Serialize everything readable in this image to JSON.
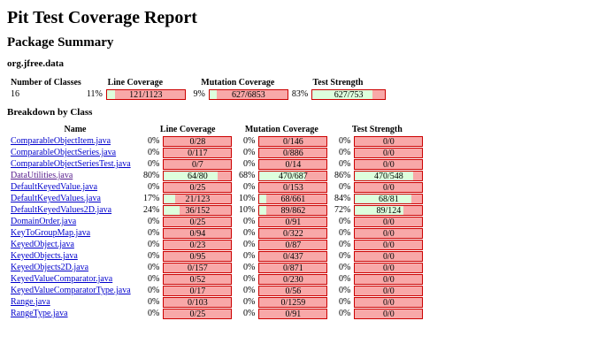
{
  "title": "Pit Test Coverage Report",
  "package_summary_heading": "Package Summary",
  "package_name": "org.jfree.data",
  "summary": {
    "headers": {
      "classes": "Number of Classes",
      "line": "Line Coverage",
      "mutation": "Mutation Coverage",
      "strength": "Test Strength"
    },
    "classes_count": "16",
    "line": {
      "pct": "11%",
      "label": "121/1123",
      "fraction": 0.1077
    },
    "mutation": {
      "pct": "9%",
      "label": "627/6853",
      "fraction": 0.0915
    },
    "strength": {
      "pct": "83%",
      "label": "627/753",
      "fraction": 0.8327
    }
  },
  "breakdown_heading": "Breakdown by Class",
  "breakdown_headers": {
    "name": "Name",
    "line": "Line Coverage",
    "mutation": "Mutation Coverage",
    "strength": "Test Strength"
  },
  "colors": {
    "covered": "#ddffdd",
    "uncovered": "#f8a8a8",
    "link": "#0000cc",
    "visited_link": "#551a8b"
  },
  "rows": [
    {
      "name": "ComparableObjectItem.java",
      "visited": false,
      "line_pct": "0%",
      "line": "0/28",
      "line_frac": 0,
      "mut_pct": "0%",
      "mut": "0/146",
      "mut_frac": 0,
      "str_pct": "0%",
      "str": "0/0",
      "str_frac": 0
    },
    {
      "name": "ComparableObjectSeries.java",
      "visited": false,
      "line_pct": "0%",
      "line": "0/117",
      "line_frac": 0,
      "mut_pct": "0%",
      "mut": "0/886",
      "mut_frac": 0,
      "str_pct": "0%",
      "str": "0/0",
      "str_frac": 0
    },
    {
      "name": "ComparableObjectSeriesTest.java",
      "visited": false,
      "line_pct": "0%",
      "line": "0/7",
      "line_frac": 0,
      "mut_pct": "0%",
      "mut": "0/14",
      "mut_frac": 0,
      "str_pct": "0%",
      "str": "0/0",
      "str_frac": 0
    },
    {
      "name": "DataUtilities.java",
      "visited": true,
      "line_pct": "80%",
      "line": "64/80",
      "line_frac": 0.8,
      "mut_pct": "68%",
      "mut": "470/687",
      "mut_frac": 0.684,
      "str_pct": "86%",
      "str": "470/548",
      "str_frac": 0.858
    },
    {
      "name": "DefaultKeyedValue.java",
      "visited": false,
      "line_pct": "0%",
      "line": "0/25",
      "line_frac": 0,
      "mut_pct": "0%",
      "mut": "0/153",
      "mut_frac": 0,
      "str_pct": "0%",
      "str": "0/0",
      "str_frac": 0
    },
    {
      "name": "DefaultKeyedValues.java",
      "visited": false,
      "line_pct": "17%",
      "line": "21/123",
      "line_frac": 0.171,
      "mut_pct": "10%",
      "mut": "68/661",
      "mut_frac": 0.103,
      "str_pct": "84%",
      "str": "68/81",
      "str_frac": 0.84
    },
    {
      "name": "DefaultKeyedValues2D.java",
      "visited": false,
      "line_pct": "24%",
      "line": "36/152",
      "line_frac": 0.237,
      "mut_pct": "10%",
      "mut": "89/862",
      "mut_frac": 0.103,
      "str_pct": "72%",
      "str": "89/124",
      "str_frac": 0.718
    },
    {
      "name": "DomainOrder.java",
      "visited": false,
      "line_pct": "0%",
      "line": "0/25",
      "line_frac": 0,
      "mut_pct": "0%",
      "mut": "0/91",
      "mut_frac": 0,
      "str_pct": "0%",
      "str": "0/0",
      "str_frac": 0
    },
    {
      "name": "KeyToGroupMap.java",
      "visited": false,
      "line_pct": "0%",
      "line": "0/94",
      "line_frac": 0,
      "mut_pct": "0%",
      "mut": "0/322",
      "mut_frac": 0,
      "str_pct": "0%",
      "str": "0/0",
      "str_frac": 0
    },
    {
      "name": "KeyedObject.java",
      "visited": false,
      "line_pct": "0%",
      "line": "0/23",
      "line_frac": 0,
      "mut_pct": "0%",
      "mut": "0/87",
      "mut_frac": 0,
      "str_pct": "0%",
      "str": "0/0",
      "str_frac": 0
    },
    {
      "name": "KeyedObjects.java",
      "visited": false,
      "line_pct": "0%",
      "line": "0/95",
      "line_frac": 0,
      "mut_pct": "0%",
      "mut": "0/437",
      "mut_frac": 0,
      "str_pct": "0%",
      "str": "0/0",
      "str_frac": 0
    },
    {
      "name": "KeyedObjects2D.java",
      "visited": false,
      "line_pct": "0%",
      "line": "0/157",
      "line_frac": 0,
      "mut_pct": "0%",
      "mut": "0/871",
      "mut_frac": 0,
      "str_pct": "0%",
      "str": "0/0",
      "str_frac": 0
    },
    {
      "name": "KeyedValueComparator.java",
      "visited": false,
      "line_pct": "0%",
      "line": "0/52",
      "line_frac": 0,
      "mut_pct": "0%",
      "mut": "0/230",
      "mut_frac": 0,
      "str_pct": "0%",
      "str": "0/0",
      "str_frac": 0
    },
    {
      "name": "KeyedValueComparatorType.java",
      "visited": false,
      "line_pct": "0%",
      "line": "0/17",
      "line_frac": 0,
      "mut_pct": "0%",
      "mut": "0/56",
      "mut_frac": 0,
      "str_pct": "0%",
      "str": "0/0",
      "str_frac": 0
    },
    {
      "name": "Range.java",
      "visited": false,
      "line_pct": "0%",
      "line": "0/103",
      "line_frac": 0,
      "mut_pct": "0%",
      "mut": "0/1259",
      "mut_frac": 0,
      "str_pct": "0%",
      "str": "0/0",
      "str_frac": 0
    },
    {
      "name": "RangeType.java",
      "visited": false,
      "line_pct": "0%",
      "line": "0/25",
      "line_frac": 0,
      "mut_pct": "0%",
      "mut": "0/91",
      "mut_frac": 0,
      "str_pct": "0%",
      "str": "0/0",
      "str_frac": 0
    }
  ]
}
